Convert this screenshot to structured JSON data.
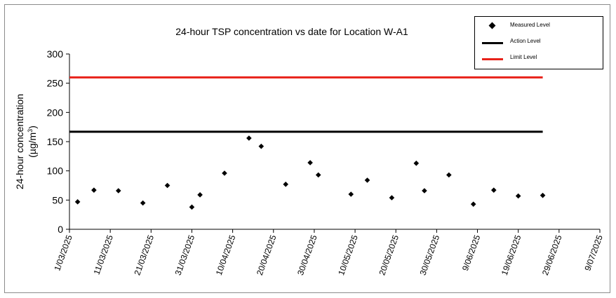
{
  "chart_data": {
    "type": "scatter",
    "title": "24-hour TSP concentration vs date for Location W-A1",
    "ylabel": "24-hour concentration",
    "ylabel_unit_prefix": "(µg/m",
    "ylabel_unit_sup": "3",
    "ylabel_unit_suffix": ")",
    "xlabel": "",
    "ylim": [
      0,
      300
    ],
    "yticks": [
      0,
      50,
      100,
      150,
      200,
      250,
      300
    ],
    "xlim": [
      "2025-03-01",
      "2025-07-09"
    ],
    "xtick_labels": [
      "1/03/2025",
      "11/03/2025",
      "21/03/2025",
      "31/03/2025",
      "10/04/2025",
      "20/04/2025",
      "30/04/2025",
      "10/05/2025",
      "20/05/2025",
      "30/05/2025",
      "9/06/2025",
      "19/06/2025",
      "29/06/2025",
      "9/07/2025"
    ],
    "grid": false,
    "legend_position": "top-right",
    "series": [
      {
        "name": "Measured Level",
        "kind": "points",
        "color": "#000000",
        "marker": "diamond",
        "points": [
          {
            "x": "2025-03-03",
            "y": 47
          },
          {
            "x": "2025-03-07",
            "y": 67
          },
          {
            "x": "2025-03-13",
            "y": 66
          },
          {
            "x": "2025-03-19",
            "y": 45
          },
          {
            "x": "2025-03-25",
            "y": 75
          },
          {
            "x": "2025-03-31",
            "y": 38
          },
          {
            "x": "2025-04-02",
            "y": 59
          },
          {
            "x": "2025-04-08",
            "y": 96
          },
          {
            "x": "2025-04-14",
            "y": 156
          },
          {
            "x": "2025-04-17",
            "y": 142
          },
          {
            "x": "2025-04-23",
            "y": 77
          },
          {
            "x": "2025-04-29",
            "y": 114
          },
          {
            "x": "2025-05-01",
            "y": 93
          },
          {
            "x": "2025-05-09",
            "y": 60
          },
          {
            "x": "2025-05-13",
            "y": 84
          },
          {
            "x": "2025-05-19",
            "y": 54
          },
          {
            "x": "2025-05-25",
            "y": 113
          },
          {
            "x": "2025-05-27",
            "y": 66
          },
          {
            "x": "2025-06-02",
            "y": 93
          },
          {
            "x": "2025-06-08",
            "y": 43
          },
          {
            "x": "2025-06-13",
            "y": 67
          },
          {
            "x": "2025-06-19",
            "y": 57
          },
          {
            "x": "2025-06-25",
            "y": 58
          }
        ]
      },
      {
        "name": "Action Level",
        "kind": "hline",
        "color": "#000000",
        "value": 167,
        "x_start": "2025-03-01",
        "x_end": "2025-06-25"
      },
      {
        "name": "Limit Level",
        "kind": "hline",
        "color": "#e8221a",
        "value": 260,
        "x_start": "2025-03-01",
        "x_end": "2025-06-25"
      }
    ]
  }
}
